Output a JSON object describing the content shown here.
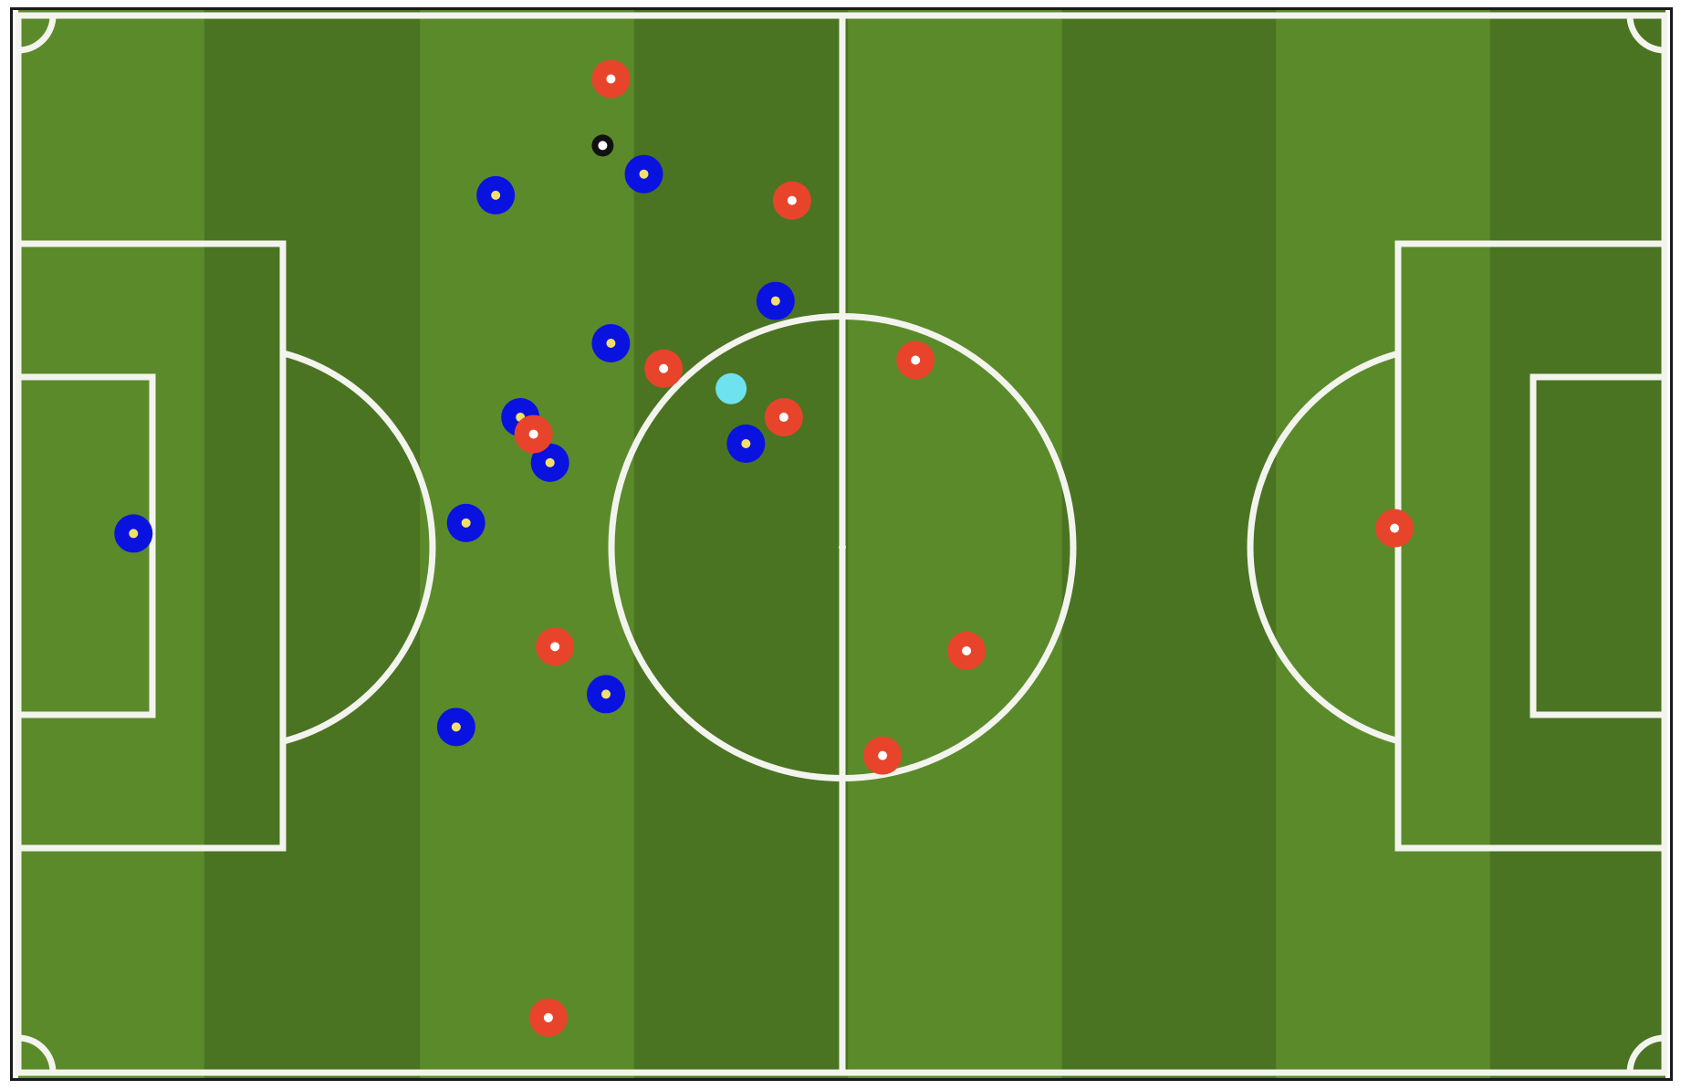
{
  "pitch": {
    "colors": {
      "light_stripe": "#5b8a2b",
      "dark_stripe": "#4a7422",
      "line": "#f4f4ee",
      "frame": "#1a1a1a"
    }
  },
  "teams": {
    "blue": {
      "outer": "#0a12e0",
      "inner": "#f3e06a"
    },
    "red": {
      "outer": "#e8442c",
      "inner": "#ffffff"
    }
  },
  "ball": {
    "outer": "#111111",
    "inner": "#ffffff"
  },
  "highlight": {
    "color": "#6ee3ef"
  },
  "players": {
    "blue": [
      {
        "x": 7,
        "y": 49
      },
      {
        "x": 29,
        "y": 17
      },
      {
        "x": 38,
        "y": 15
      },
      {
        "x": 46,
        "y": 27
      },
      {
        "x": 36,
        "y": 31
      },
      {
        "x": 30.5,
        "y": 38
      },
      {
        "x": 32.3,
        "y": 42.3
      },
      {
        "x": 27.2,
        "y": 48
      },
      {
        "x": 44.2,
        "y": 40.5
      },
      {
        "x": 35.7,
        "y": 64.2
      },
      {
        "x": 26.6,
        "y": 67.3
      }
    ],
    "red": [
      {
        "x": 36,
        "y": 6
      },
      {
        "x": 47,
        "y": 17.5
      },
      {
        "x": 39.2,
        "y": 33.4
      },
      {
        "x": 46.5,
        "y": 38
      },
      {
        "x": 31.3,
        "y": 39.6
      },
      {
        "x": 54.5,
        "y": 32.6
      },
      {
        "x": 32.6,
        "y": 59.7
      },
      {
        "x": 57.6,
        "y": 60.1
      },
      {
        "x": 52.5,
        "y": 70
      },
      {
        "x": 32.2,
        "y": 94.8
      },
      {
        "x": 83.6,
        "y": 48.5
      }
    ]
  },
  "ball_position": {
    "x": 35.5,
    "y": 12.3
  },
  "highlight_position": {
    "x": 43.3,
    "y": 35.3
  }
}
